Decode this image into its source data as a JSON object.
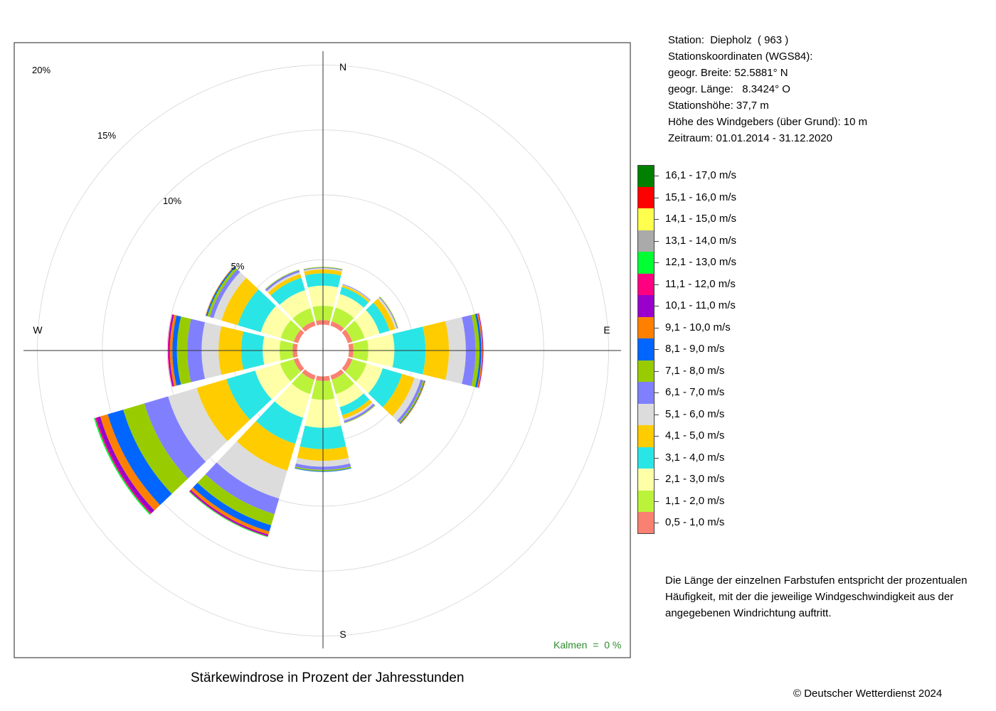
{
  "station_info": {
    "line1": "Station:  Diepholz  ( 963 )",
    "line2": "Stationskoordinaten (WGS84):",
    "line3": "geogr. Breite: 52.5881° N",
    "line4": "geogr. Länge:   8.3424° O",
    "line5": "Stationshöhe: 37,7 m",
    "line6": "Höhe des Windgebers (über Grund): 10 m",
    "line7": "Zeitraum: 01.01.2014 - 31.12.2020"
  },
  "caption": "Stärkewindrose in Prozent der Jahresstunden",
  "copyright": "© Deutscher Wetterdienst  2024",
  "note": "Die Länge der einzelnen Farbstufen entspricht der prozentualen Häufigkeit, mit der die jeweilige Windgeschwindigkeit aus der angegebenen Windrichtung auftritt.",
  "calm": "Kalmen  =  0 %",
  "chart_data": {
    "type": "windrose",
    "directions": [
      "N",
      "30°",
      "60°",
      "E",
      "120°",
      "150°",
      "S",
      "210°",
      "240°",
      "W",
      "300°",
      "330°"
    ],
    "direction_labels": {
      "N": "N",
      "E": "E",
      "S": "S",
      "W": "W"
    },
    "ring_labels": [
      "5%",
      "10%",
      "15%",
      "20%"
    ],
    "ring_values": [
      5,
      10,
      15,
      20
    ],
    "inner_offset_pct": 2.0,
    "classes": [
      {
        "label": "0,5 - 1,0 m/s",
        "color": "#fa8072"
      },
      {
        "label": "1,1 - 2,0 m/s",
        "color": "#bbf33b"
      },
      {
        "label": "2,1 - 3,0 m/s",
        "color": "#ffffa8"
      },
      {
        "label": "3,1 - 4,0 m/s",
        "color": "#2ae5e5"
      },
      {
        "label": "4,1 - 5,0 m/s",
        "color": "#ffcc00"
      },
      {
        "label": "5,1 - 6,0 m/s",
        "color": "#dcdcdc"
      },
      {
        "label": "6,1 - 7,0 m/s",
        "color": "#8080ff"
      },
      {
        "label": "7,1 - 8,0 m/s",
        "color": "#99cc00"
      },
      {
        "label": "8,1 - 9,0 m/s",
        "color": "#0066ff"
      },
      {
        "label": "9,1 - 10,0 m/s",
        "color": "#ff8000"
      },
      {
        "label": "10,1 - 11,0 m/s",
        "color": "#9900cc"
      },
      {
        "label": "11,1 - 12,0 m/s",
        "color": "#ff0080"
      },
      {
        "label": "12,1 - 13,0 m/s",
        "color": "#00ff33"
      },
      {
        "label": "13,1 - 14,0 m/s",
        "color": "#aaaaaa"
      },
      {
        "label": "14,1 - 15,0 m/s",
        "color": "#ffff4d"
      },
      {
        "label": "15,1 - 16,0 m/s",
        "color": "#ff0000"
      },
      {
        "label": "16,1 - 17,0 m/s",
        "color": "#008000"
      }
    ],
    "series": [
      {
        "direction": "N",
        "values": [
          0.35,
          1.1,
          1.55,
          0.95,
          0.3,
          0.1,
          0.05,
          0.05,
          0,
          0,
          0,
          0,
          0,
          0,
          0,
          0,
          0
        ]
      },
      {
        "direction": "30°",
        "values": [
          0.35,
          1.1,
          1.1,
          0.55,
          0.15,
          0.05,
          0.05,
          0,
          0,
          0,
          0,
          0,
          0,
          0,
          0,
          0,
          0
        ]
      },
      {
        "direction": "60°",
        "values": [
          0.35,
          1.0,
          1.2,
          0.8,
          0.45,
          0.15,
          0.05,
          0.05,
          0,
          0,
          0,
          0,
          0,
          0,
          0,
          0,
          0
        ]
      },
      {
        "direction": "E",
        "values": [
          0.35,
          1.15,
          2.0,
          2.4,
          1.8,
          1.3,
          0.75,
          0.3,
          0.15,
          0.1,
          0.05,
          0,
          0,
          0,
          0,
          0,
          0
        ]
      },
      {
        "direction": "120°",
        "values": [
          0.35,
          1.15,
          1.3,
          1.55,
          1.0,
          0.5,
          0.2,
          0.1,
          0.05,
          0.05,
          0,
          0,
          0,
          0,
          0,
          0,
          0
        ]
      },
      {
        "direction": "150°",
        "values": [
          0.35,
          1.15,
          1.05,
          0.65,
          0.3,
          0.15,
          0.15,
          0.05,
          0,
          0,
          0,
          0,
          0,
          0,
          0,
          0,
          0
        ]
      },
      {
        "direction": "S",
        "values": [
          0.35,
          1.45,
          2.15,
          1.65,
          0.9,
          0.45,
          0.25,
          0.1,
          0.05,
          0,
          0,
          0,
          0,
          0,
          0,
          0,
          0
        ]
      },
      {
        "direction": "210°",
        "values": [
          0.35,
          1.15,
          1.9,
          2.1,
          2.15,
          2.25,
          1.25,
          0.9,
          0.5,
          0.25,
          0.1,
          0.05,
          0.05,
          0,
          0,
          0,
          0
        ]
      },
      {
        "direction": "240°",
        "values": [
          0.35,
          1.1,
          2.0,
          2.3,
          2.4,
          2.3,
          1.9,
          1.7,
          1.25,
          0.6,
          0.3,
          0.1,
          0.1,
          0,
          0,
          0,
          0
        ]
      },
      {
        "direction": "W",
        "values": [
          0.35,
          1.0,
          1.3,
          1.65,
          1.75,
          1.3,
          1.1,
          0.8,
          0.35,
          0.2,
          0.1,
          0.05,
          0,
          0,
          0,
          0,
          0
        ]
      },
      {
        "direction": "300°",
        "values": [
          0.35,
          1.05,
          1.6,
          1.85,
          1.3,
          0.65,
          0.3,
          0.2,
          0.1,
          0.05,
          0,
          0,
          0,
          0,
          0,
          0,
          0
        ]
      },
      {
        "direction": "330°",
        "values": [
          0.35,
          1.05,
          1.45,
          1.0,
          0.3,
          0.15,
          0.15,
          0.05,
          0,
          0,
          0,
          0,
          0,
          0,
          0,
          0,
          0
        ]
      }
    ]
  }
}
